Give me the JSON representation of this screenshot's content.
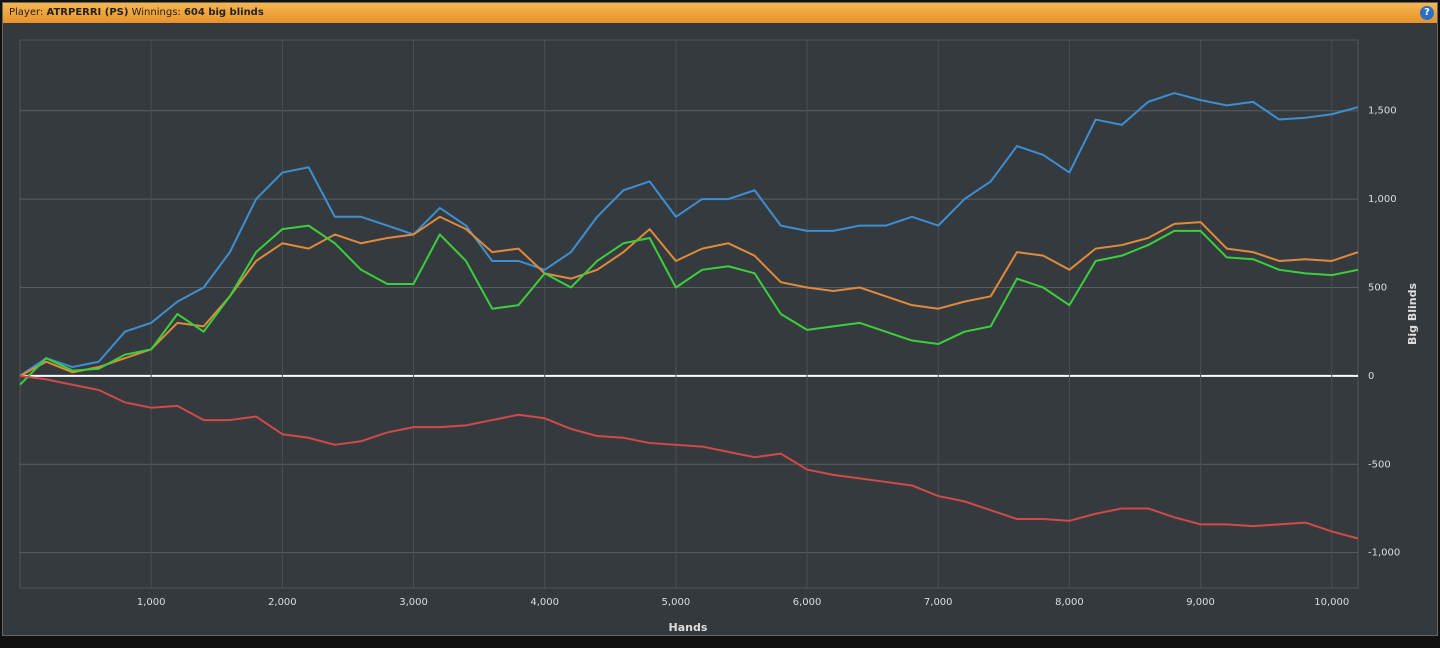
{
  "header": {
    "player_label": "Player:",
    "player": "ATRPERRI (PS)",
    "winnings_label": "Winnings:",
    "winnings": "604 big blinds",
    "help": "?"
  },
  "chart_data": {
    "type": "line",
    "x_label": "Hands",
    "y_label": "Big Blinds",
    "xlim": [
      0,
      10200
    ],
    "ylim": [
      -1200,
      1900
    ],
    "xticks": [
      {
        "value": 1000,
        "label": "1,000"
      },
      {
        "value": 2000,
        "label": "2,000"
      },
      {
        "value": 3000,
        "label": "3,000"
      },
      {
        "value": 4000,
        "label": "4,000"
      },
      {
        "value": 5000,
        "label": "5,000"
      },
      {
        "value": 6000,
        "label": "6,000"
      },
      {
        "value": 7000,
        "label": "7,000"
      },
      {
        "value": 8000,
        "label": "8,000"
      },
      {
        "value": 9000,
        "label": "9,000"
      },
      {
        "value": 10000,
        "label": "10,000"
      }
    ],
    "yticks": [
      {
        "value": -1000,
        "label": "-1,000"
      },
      -500,
      0,
      500,
      {
        "value": 1000,
        "label": "1,000"
      },
      {
        "value": 1500,
        "label": "1,500"
      }
    ],
    "grid": true,
    "x": [
      0,
      200,
      400,
      600,
      800,
      1000,
      1200,
      1400,
      1600,
      1800,
      2000,
      2200,
      2400,
      2600,
      2800,
      3000,
      3200,
      3400,
      3600,
      3800,
      4000,
      4200,
      4400,
      4600,
      4800,
      5000,
      5200,
      5400,
      5600,
      5800,
      6000,
      6200,
      6400,
      6600,
      6800,
      7000,
      7200,
      7400,
      7600,
      7800,
      8000,
      8200,
      8400,
      8600,
      8800,
      9000,
      9200,
      9400,
      9600,
      9800,
      10000,
      10200
    ],
    "series": [
      {
        "color": "#3d8fd1",
        "values": [
          0,
          100,
          50,
          80,
          250,
          300,
          420,
          500,
          700,
          1000,
          1150,
          1180,
          900,
          900,
          850,
          800,
          950,
          850,
          650,
          650,
          600,
          700,
          900,
          1050,
          1100,
          900,
          1000,
          1000,
          1050,
          850,
          820,
          820,
          850,
          850,
          900,
          850,
          1000,
          1100,
          1300,
          1250,
          1150,
          1450,
          1420,
          1550,
          1600,
          1560,
          1530,
          1550,
          1450,
          1460,
          1480,
          1520
        ]
      },
      {
        "color": "#e08a3c",
        "values": [
          0,
          80,
          20,
          50,
          100,
          150,
          300,
          280,
          450,
          650,
          750,
          720,
          800,
          750,
          780,
          800,
          900,
          830,
          700,
          720,
          580,
          550,
          600,
          700,
          830,
          650,
          720,
          750,
          680,
          530,
          500,
          480,
          500,
          450,
          400,
          380,
          420,
          450,
          700,
          680,
          600,
          720,
          740,
          780,
          860,
          870,
          720,
          700,
          650,
          660,
          650,
          700
        ]
      },
      {
        "color": "#3ccf3c",
        "values": [
          -50,
          100,
          30,
          40,
          120,
          150,
          350,
          250,
          450,
          700,
          830,
          850,
          750,
          600,
          520,
          520,
          800,
          650,
          380,
          400,
          580,
          500,
          650,
          750,
          780,
          500,
          600,
          620,
          580,
          350,
          260,
          280,
          300,
          250,
          200,
          180,
          250,
          280,
          550,
          500,
          400,
          650,
          680,
          740,
          820,
          820,
          670,
          660,
          600,
          580,
          570,
          600
        ]
      },
      {
        "color": "#d04a4a",
        "values": [
          0,
          -20,
          -50,
          -80,
          -150,
          -180,
          -170,
          -250,
          -250,
          -230,
          -330,
          -350,
          -390,
          -370,
          -320,
          -290,
          -290,
          -280,
          -250,
          -220,
          -240,
          -300,
          -340,
          -350,
          -380,
          -390,
          -400,
          -430,
          -460,
          -440,
          -530,
          -560,
          -580,
          -600,
          -620,
          -680,
          -710,
          -760,
          -810,
          -810,
          -820,
          -780,
          -750,
          -750,
          -800,
          -840,
          -840,
          -850,
          -840,
          -830,
          -880,
          -920
        ]
      }
    ]
  }
}
